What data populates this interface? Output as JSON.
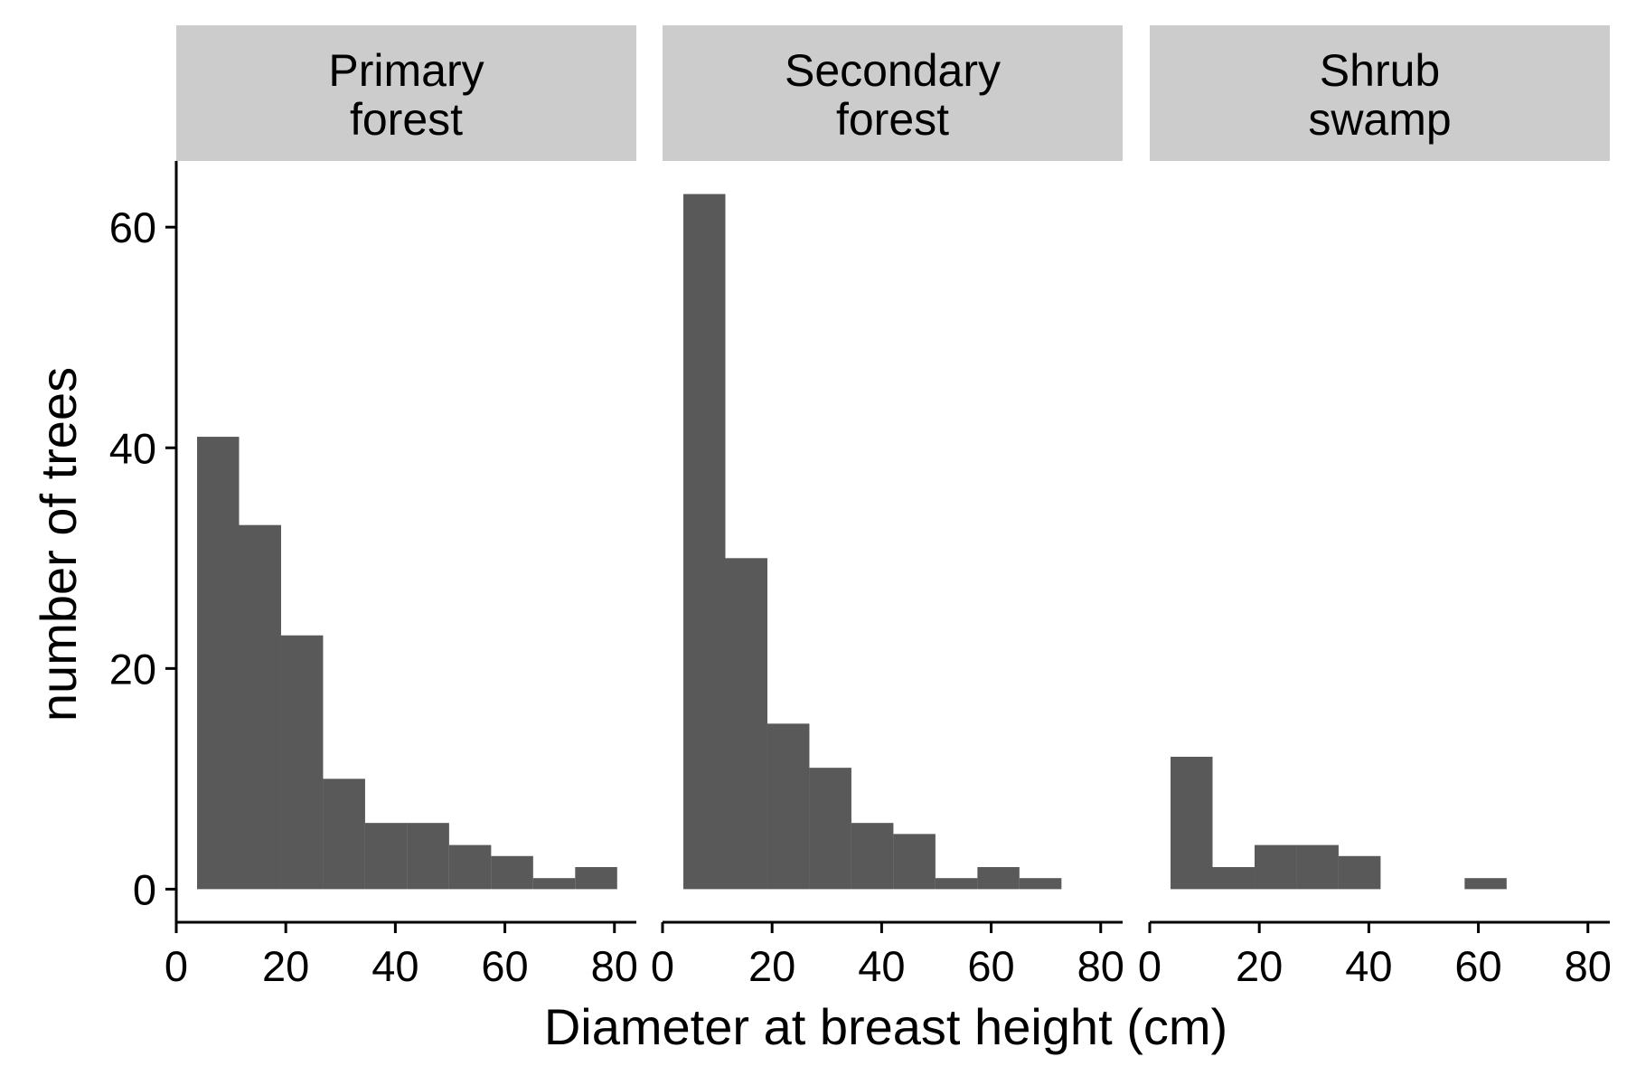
{
  "chart_data": {
    "type": "bar",
    "subtype": "faceted-histogram",
    "xlabel": "Diameter at breast height (cm)",
    "ylabel": "number of trees",
    "xlim": [
      0,
      84
    ],
    "ylim": [
      -3,
      66
    ],
    "x_ticks": [
      "0",
      "20",
      "40",
      "60",
      "80"
    ],
    "x_tick_values": [
      0,
      20,
      40,
      60,
      80
    ],
    "y_ticks": [
      "0",
      "20",
      "40",
      "60"
    ],
    "y_tick_values": [
      0,
      20,
      40,
      60
    ],
    "bin_width": 7.67,
    "bin_start": 3.8,
    "bar_color": "#595959",
    "strip_color": "#cccccc",
    "facets": [
      {
        "label_lines": [
          "Primary",
          "forest"
        ],
        "counts": [
          41,
          33,
          23,
          10,
          6,
          6,
          4,
          3,
          1,
          2
        ]
      },
      {
        "label_lines": [
          "Secondary",
          "forest"
        ],
        "counts": [
          63,
          30,
          15,
          11,
          6,
          5,
          1,
          2,
          1,
          0
        ]
      },
      {
        "label_lines": [
          "Shrub",
          "swamp"
        ],
        "counts": [
          12,
          2,
          4,
          4,
          3,
          0,
          0,
          1,
          0,
          0
        ]
      }
    ]
  }
}
